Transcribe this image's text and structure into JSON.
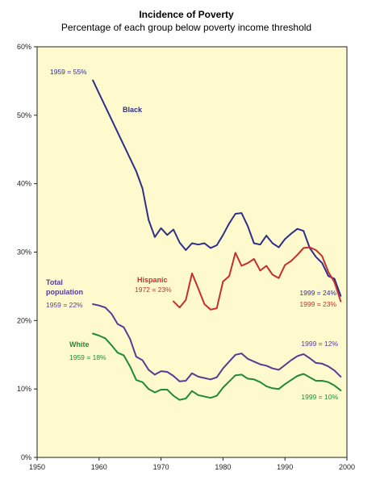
{
  "chart_data": {
    "type": "line",
    "title": "Incidence of Poverty",
    "subtitle": "Percentage of each group below poverty income threshold",
    "xlabel": "",
    "ylabel": "",
    "xlim": [
      1950,
      2000
    ],
    "ylim": [
      0,
      60
    ],
    "x_ticks": [
      "1950",
      "1960",
      "1970",
      "1980",
      "1990",
      "2000"
    ],
    "y_ticks": [
      "0%",
      "10%",
      "20%",
      "30%",
      "40%",
      "50%",
      "60%"
    ],
    "grid": false,
    "colors": {
      "plot_background": "#FFFACD",
      "black": "#2E2E8C",
      "hispanic": "#C4302B",
      "total": "#5B3A96",
      "white": "#1F8A3A"
    },
    "series": [
      {
        "key": "black",
        "name": "Black",
        "x": [
          1959,
          1966,
          1967,
          1968,
          1969,
          1970,
          1971,
          1972,
          1973,
          1974,
          1975,
          1976,
          1977,
          1978,
          1979,
          1980,
          1981,
          1982,
          1983,
          1984,
          1985,
          1986,
          1987,
          1988,
          1989,
          1990,
          1991,
          1992,
          1993,
          1994,
          1995,
          1996,
          1997,
          1998,
          1999
        ],
        "values": [
          55.1,
          41.8,
          39.3,
          34.7,
          32.2,
          33.5,
          32.5,
          33.3,
          31.4,
          30.3,
          31.3,
          31.1,
          31.3,
          30.6,
          31.0,
          32.5,
          34.2,
          35.6,
          35.7,
          33.8,
          31.3,
          31.1,
          32.4,
          31.3,
          30.7,
          31.9,
          32.7,
          33.4,
          33.1,
          30.6,
          29.3,
          28.4,
          26.5,
          26.1,
          23.6
        ]
      },
      {
        "key": "hispanic",
        "name": "Hispanic",
        "x": [
          1972,
          1973,
          1974,
          1975,
          1976,
          1977,
          1978,
          1979,
          1980,
          1981,
          1982,
          1983,
          1984,
          1985,
          1986,
          1987,
          1988,
          1989,
          1990,
          1991,
          1992,
          1993,
          1994,
          1995,
          1996,
          1997,
          1998,
          1999
        ],
        "values": [
          22.8,
          21.9,
          23.0,
          26.9,
          24.7,
          22.4,
          21.6,
          21.8,
          25.7,
          26.5,
          29.9,
          28.0,
          28.4,
          29.0,
          27.3,
          28.0,
          26.7,
          26.2,
          28.1,
          28.7,
          29.6,
          30.6,
          30.7,
          30.3,
          29.4,
          27.1,
          25.6,
          22.8
        ]
      },
      {
        "key": "total",
        "name": "Total population",
        "x": [
          1959,
          1960,
          1961,
          1962,
          1963,
          1964,
          1965,
          1966,
          1967,
          1968,
          1969,
          1970,
          1971,
          1972,
          1973,
          1974,
          1975,
          1976,
          1977,
          1978,
          1979,
          1980,
          1981,
          1982,
          1983,
          1984,
          1985,
          1986,
          1987,
          1988,
          1989,
          1990,
          1991,
          1992,
          1993,
          1994,
          1995,
          1996,
          1997,
          1998,
          1999
        ],
        "values": [
          22.4,
          22.2,
          21.9,
          21.0,
          19.5,
          19.0,
          17.3,
          14.7,
          14.2,
          12.8,
          12.1,
          12.6,
          12.5,
          11.9,
          11.1,
          11.2,
          12.3,
          11.8,
          11.6,
          11.4,
          11.7,
          13.0,
          14.0,
          15.0,
          15.2,
          14.4,
          14.0,
          13.6,
          13.4,
          13.0,
          12.8,
          13.5,
          14.2,
          14.8,
          15.1,
          14.5,
          13.8,
          13.7,
          13.3,
          12.7,
          11.8
        ]
      },
      {
        "key": "white",
        "name": "White",
        "x": [
          1959,
          1960,
          1961,
          1962,
          1963,
          1964,
          1965,
          1966,
          1967,
          1968,
          1969,
          1970,
          1971,
          1972,
          1973,
          1974,
          1975,
          1976,
          1977,
          1978,
          1979,
          1980,
          1981,
          1982,
          1983,
          1984,
          1985,
          1986,
          1987,
          1988,
          1989,
          1990,
          1991,
          1992,
          1993,
          1994,
          1995,
          1996,
          1997,
          1998,
          1999
        ],
        "values": [
          18.1,
          17.8,
          17.4,
          16.4,
          15.3,
          14.9,
          13.3,
          11.3,
          11.0,
          10.0,
          9.5,
          9.9,
          9.9,
          9.0,
          8.4,
          8.6,
          9.7,
          9.1,
          8.9,
          8.7,
          9.0,
          10.2,
          11.1,
          12.0,
          12.1,
          11.5,
          11.4,
          11.0,
          10.4,
          10.1,
          10.0,
          10.7,
          11.3,
          11.9,
          12.2,
          11.7,
          11.2,
          11.2,
          11.0,
          10.5,
          9.8
        ]
      }
    ],
    "labels": {
      "black_name": "Black",
      "hispanic_name": "Hispanic",
      "total_name_line1": "Total",
      "total_name_line2": "population",
      "white_name": "White",
      "black_start": "1959 = 55%",
      "hispanic_start": "1972 = 23%",
      "total_start": "1959 = 22%",
      "white_start": "1959 = 18%",
      "black_end": "1999 = 24%",
      "hispanic_end": "1999 = 23%",
      "total_end": "1999 = 12%",
      "white_end": "1999 = 10%"
    }
  }
}
